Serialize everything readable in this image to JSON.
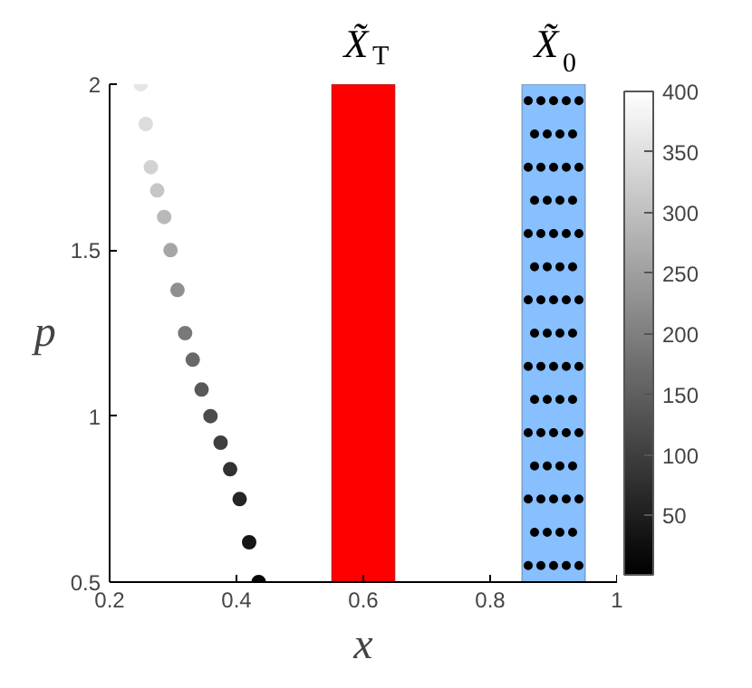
{
  "chart_data": {
    "type": "scatter",
    "xlabel": "x",
    "ylabel": "p",
    "xlim": [
      0.2,
      1
    ],
    "ylim": [
      0.5,
      2
    ],
    "xticks": [
      0.2,
      0.4,
      0.6,
      0.8,
      1
    ],
    "yticks": [
      0.5,
      1,
      1.5,
      2
    ],
    "grid": false,
    "marker": "circle",
    "clim": [
      1,
      400
    ],
    "cticks": [
      50,
      100,
      150,
      200,
      250,
      300,
      350,
      400
    ],
    "bands": [
      {
        "axis": "x",
        "from": 0.55,
        "to": 0.65,
        "label": "X̃$_{T}$",
        "color": "#ff0000"
      },
      {
        "axis": "x",
        "from": 0.85,
        "to": 0.95,
        "label": "X̃$_{0}$",
        "color": "#87bfff"
      }
    ],
    "series": [
      {
        "x": [
          0.435,
          0.42,
          0.405,
          0.39,
          0.375,
          0.359,
          0.345,
          0.331,
          0.319,
          0.307,
          0.296,
          0.286,
          0.275,
          0.265,
          0.257,
          0.249
        ],
        "values": [
          0.5,
          0.62,
          0.75,
          0.84,
          0.92,
          1.0,
          1.08,
          1.17,
          1.25,
          1.38,
          1.5,
          1.6,
          1.68,
          1.75,
          1.88,
          2.0
        ],
        "cvalues": [
          10,
          35,
          60,
          80,
          100,
          120,
          140,
          165,
          190,
          225,
          260,
          290,
          310,
          330,
          345,
          360
        ],
        "colors": [
          "#060606",
          "#161616",
          "#262626",
          "#323232",
          "#3f3f3f",
          "#4c4c4c",
          "#595959",
          "#696969",
          "#797979",
          "#8f8f8f",
          "#a6a6a6",
          "#b9b9b9",
          "#c6c6c6",
          "#d2d2d2",
          "#dcdcdc",
          "#e5e5e5"
        ]
      },
      {
        "color": "#000000",
        "x": [
          0.86,
          0.88,
          0.9,
          0.92,
          0.94,
          0.87,
          0.89,
          0.91,
          0.93,
          0.86,
          0.88,
          0.9,
          0.92,
          0.94,
          0.87,
          0.89,
          0.91,
          0.93,
          0.86,
          0.88,
          0.9,
          0.92,
          0.94,
          0.87,
          0.89,
          0.91,
          0.93,
          0.86,
          0.88,
          0.9,
          0.92,
          0.94,
          0.87,
          0.89,
          0.91,
          0.93,
          0.86,
          0.88,
          0.9,
          0.92,
          0.94,
          0.87,
          0.89,
          0.91,
          0.93,
          0.86,
          0.88,
          0.9,
          0.92,
          0.94,
          0.87,
          0.89,
          0.91,
          0.93,
          0.86,
          0.88,
          0.9,
          0.92,
          0.94,
          0.87,
          0.89,
          0.91,
          0.93,
          0.86,
          0.88,
          0.9,
          0.92,
          0.94
        ],
        "values": [
          0.55,
          0.55,
          0.55,
          0.55,
          0.55,
          0.65,
          0.65,
          0.65,
          0.65,
          0.75,
          0.75,
          0.75,
          0.75,
          0.75,
          0.85,
          0.85,
          0.85,
          0.85,
          0.95,
          0.95,
          0.95,
          0.95,
          0.95,
          1.05,
          1.05,
          1.05,
          1.05,
          1.15,
          1.15,
          1.15,
          1.15,
          1.15,
          1.25,
          1.25,
          1.25,
          1.25,
          1.35,
          1.35,
          1.35,
          1.35,
          1.35,
          1.45,
          1.45,
          1.45,
          1.45,
          1.55,
          1.55,
          1.55,
          1.55,
          1.55,
          1.65,
          1.65,
          1.65,
          1.65,
          1.75,
          1.75,
          1.75,
          1.75,
          1.75,
          1.85,
          1.85,
          1.85,
          1.85,
          1.95,
          1.95,
          1.95,
          1.95,
          1.95
        ]
      }
    ]
  }
}
